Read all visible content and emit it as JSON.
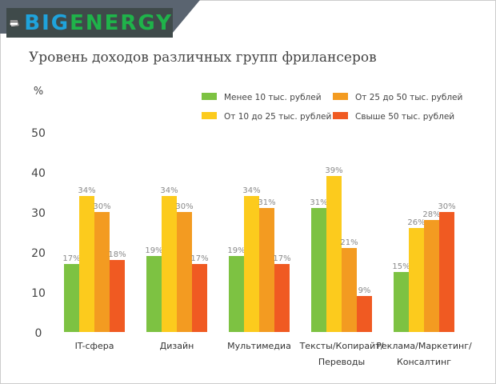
{
  "logo": {
    "part1": "BIG",
    "part2": "ENERGY"
  },
  "chart_data": {
    "type": "bar",
    "title": "Уровень доходов различных групп фрилансеров",
    "ylabel": "%",
    "ylim": [
      0,
      50
    ],
    "yticks": [
      0,
      10,
      20,
      30,
      40,
      50
    ],
    "grid": false,
    "legend_position": "top-right",
    "categories": [
      [
        "IT-сфера"
      ],
      [
        "Дизайн"
      ],
      [
        "Мультимедиа"
      ],
      [
        "Тексты/Копирайт/",
        "Переводы"
      ],
      [
        "Реклама/Маркетинг/",
        "Консалтинг"
      ]
    ],
    "series": [
      {
        "name": "Менее 10 тыс. рублей",
        "color": "#7dc242",
        "values": [
          17,
          19,
          19,
          31,
          15
        ]
      },
      {
        "name": "От 10 до 25 тыс. рублей",
        "color": "#fccb1d",
        "values": [
          34,
          34,
          34,
          39,
          26
        ]
      },
      {
        "name": "От 25 до 50 тыс. рублей",
        "color": "#f39b21",
        "values": [
          30,
          30,
          31,
          21,
          28
        ]
      },
      {
        "name": "Свыше 50 тыс. рублей",
        "color": "#f05a22",
        "values": [
          18,
          17,
          17,
          9,
          30
        ]
      }
    ],
    "value_suffix": "%"
  }
}
